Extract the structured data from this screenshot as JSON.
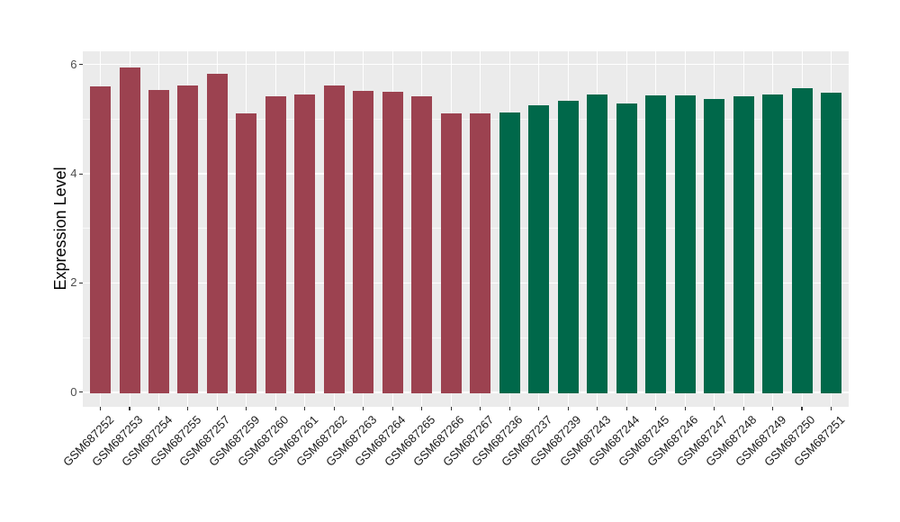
{
  "chart_data": {
    "type": "bar",
    "title": "",
    "xlabel": "",
    "ylabel": "Expression Level",
    "ylim": [
      0,
      6.25
    ],
    "yticks": [
      0,
      2,
      4,
      6
    ],
    "ytick_labels": [
      "0",
      "2",
      "4",
      "6"
    ],
    "minor_yticks": [
      1,
      3,
      5
    ],
    "grid": "on",
    "legend": "none",
    "panel_background_color": "#EBEBEB",
    "gridline_color": "#FFFFFF",
    "categories": [
      "GSM687252",
      "GSM687253",
      "GSM687254",
      "GSM687255",
      "GSM687257",
      "GSM687259",
      "GSM687260",
      "GSM687261",
      "GSM687262",
      "GSM687263",
      "GSM687264",
      "GSM687265",
      "GSM687266",
      "GSM687267",
      "GSM687236",
      "GSM687237",
      "GSM687239",
      "GSM687243",
      "GSM687244",
      "GSM687245",
      "GSM687246",
      "GSM687247",
      "GSM687248",
      "GSM687249",
      "GSM687250",
      "GSM687251"
    ],
    "series": [
      {
        "name": "red-bars",
        "color": "#9C4250",
        "categories": [
          "GSM687252",
          "GSM687253",
          "GSM687254",
          "GSM687255",
          "GSM687257",
          "GSM687259",
          "GSM687260",
          "GSM687261",
          "GSM687262",
          "GSM687263",
          "GSM687264",
          "GSM687265",
          "GSM687266",
          "GSM687267"
        ],
        "values": [
          5.6,
          5.95,
          5.53,
          5.62,
          5.83,
          5.1,
          5.42,
          5.45,
          5.61,
          5.52,
          5.5,
          5.41,
          5.1,
          5.1
        ]
      },
      {
        "name": "green-bars",
        "color": "#00684A",
        "categories": [
          "GSM687236",
          "GSM687237",
          "GSM687239",
          "GSM687243",
          "GSM687244",
          "GSM687245",
          "GSM687246",
          "GSM687247",
          "GSM687248",
          "GSM687249",
          "GSM687250",
          "GSM687251"
        ],
        "values": [
          5.12,
          5.26,
          5.33,
          5.45,
          5.28,
          5.44,
          5.43,
          5.37,
          5.41,
          5.45,
          5.56,
          5.49
        ]
      }
    ]
  }
}
